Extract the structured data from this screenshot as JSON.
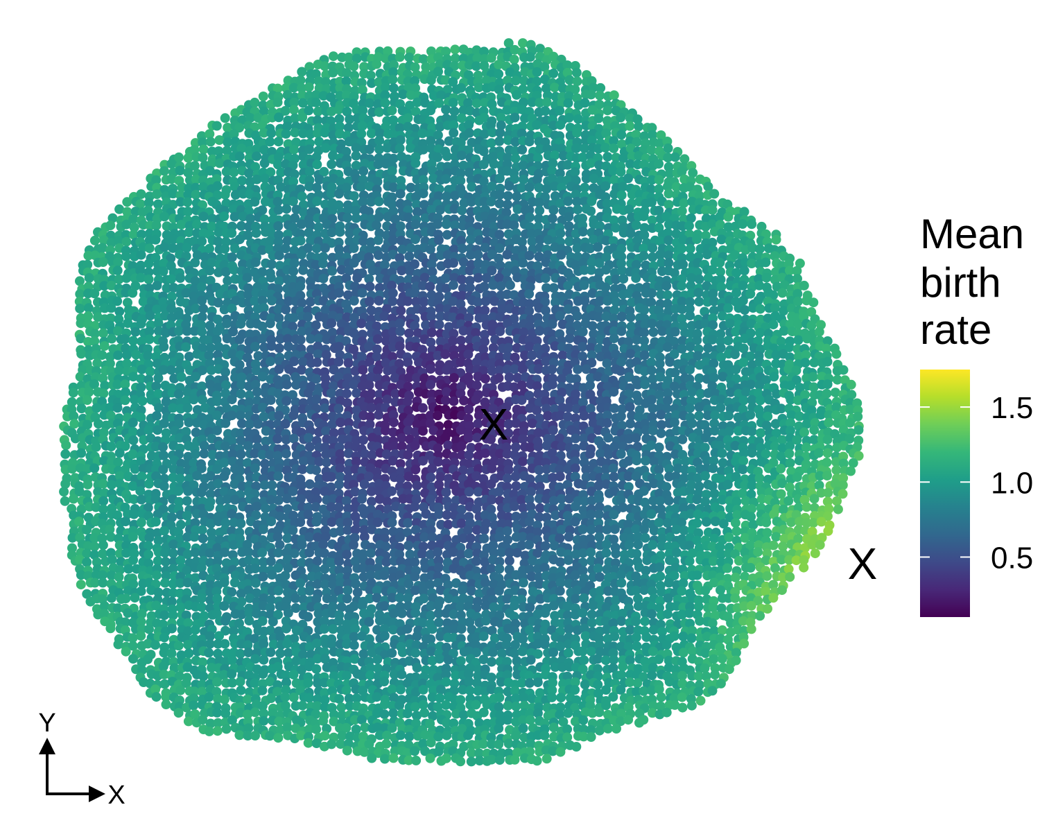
{
  "chart_data": {
    "type": "scatter",
    "description_kind": "spatial point map of cells coloured by value",
    "color_scale": {
      "title_lines": [
        "Mean",
        "birth",
        "rate"
      ],
      "palette": "viridis",
      "colors": [
        "#440154",
        "#482878",
        "#3e4a89",
        "#31688e",
        "#26828e",
        "#1f9e89",
        "#35b779",
        "#6ece58",
        "#b5de2b",
        "#fde725"
      ],
      "min": 0.1,
      "max": 1.75,
      "ticks": [
        {
          "value": 0.5,
          "label": "0.5"
        },
        {
          "value": 1.0,
          "label": "1.0"
        },
        {
          "value": 1.5,
          "label": "1.5"
        }
      ]
    },
    "radial_profile": {
      "center_value": 0.15,
      "edge_value": 1.15,
      "hotspot_value": 1.45
    },
    "markers": [
      {
        "label": "X",
        "role": "colony-centre"
      },
      {
        "label": "X",
        "role": "edge-hotspot"
      }
    ],
    "axis_indicator": {
      "x_label": "X",
      "y_label": "Y"
    }
  }
}
